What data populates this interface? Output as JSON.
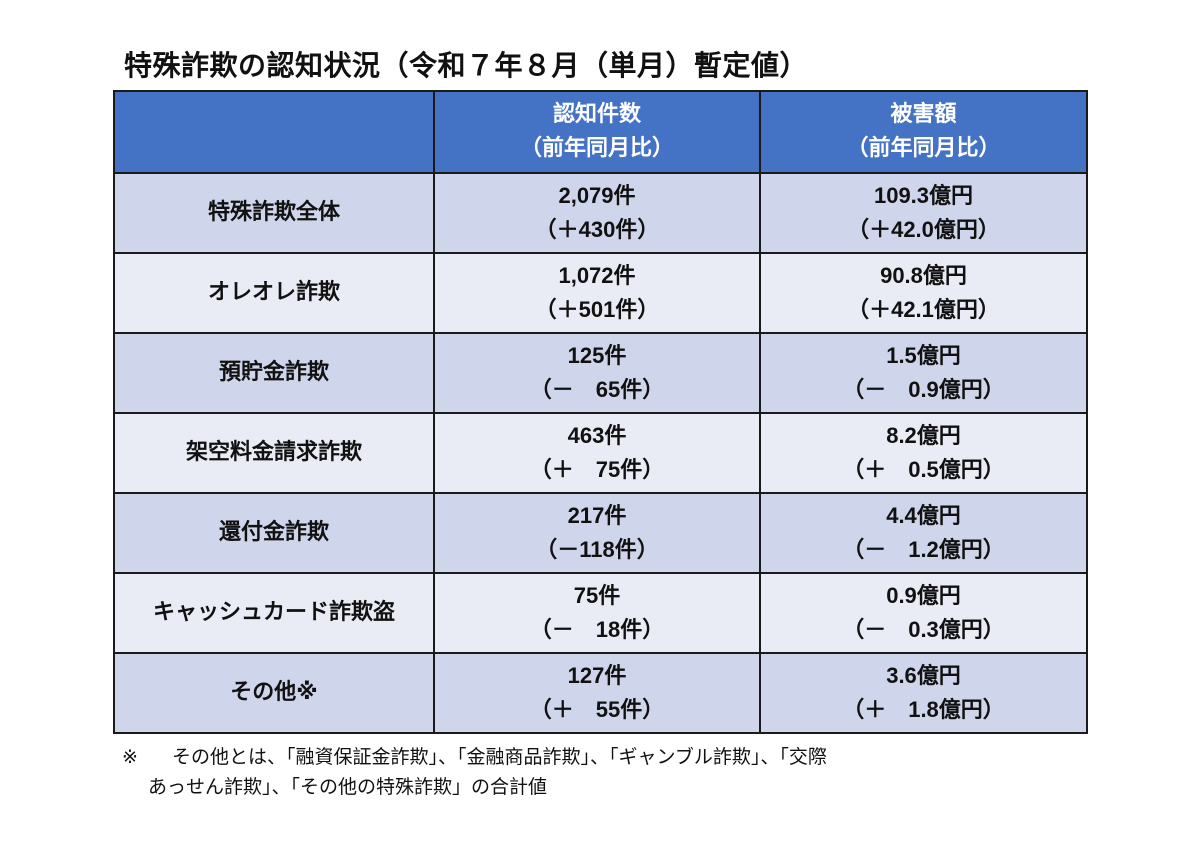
{
  "title": "特殊詐欺の認知状況（令和７年８月（単月）暫定値）",
  "table": {
    "headers": {
      "category": "",
      "count_line1": "認知件数",
      "count_line2": "（前年同月比）",
      "damage_line1": "被害額",
      "damage_line2": "（前年同月比）"
    },
    "rows": [
      {
        "label": "特殊詐欺全体",
        "count": "2,079件",
        "count_diff": "（＋430件）",
        "damage": "109.3億円",
        "damage_diff": "（＋42.0億円）"
      },
      {
        "label": "オレオレ詐欺",
        "count": "1,072件",
        "count_diff": "（＋501件）",
        "damage": "90.8億円",
        "damage_diff": "（＋42.1億円）"
      },
      {
        "label": "預貯金詐欺",
        "count": "125件",
        "count_diff": "（－　65件）",
        "damage": "1.5億円",
        "damage_diff": "（－　0.9億円）"
      },
      {
        "label": "架空料金請求詐欺",
        "count": "463件",
        "count_diff": "（＋　75件）",
        "damage": "8.2億円",
        "damage_diff": "（＋　0.5億円）"
      },
      {
        "label": "還付金詐欺",
        "count": "217件",
        "count_diff": "（－118件）",
        "damage": "4.4億円",
        "damage_diff": "（－　1.2億円）"
      },
      {
        "label": "キャッシュカード詐欺盗",
        "count": "75件",
        "count_diff": "（－　18件）",
        "damage": "0.9億円",
        "damage_diff": "（－　0.3億円）"
      },
      {
        "label": "その他※",
        "count": "127件",
        "count_diff": "（＋　55件）",
        "damage": "3.6億円",
        "damage_diff": "（＋　1.8億円）"
      }
    ]
  },
  "footnote": {
    "mark": "※",
    "line1": "その他とは、「融資保証金詐欺」、「金融商品詐欺」、「ギャンブル詐欺」、「交際",
    "line2": "あっせん詐欺」、「その他の特殊詐欺」の合計値"
  }
}
